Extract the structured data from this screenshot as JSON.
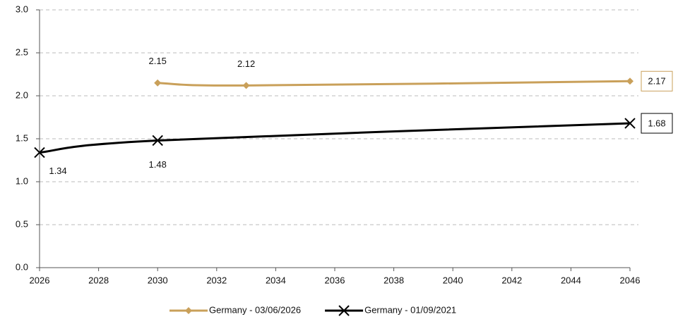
{
  "chart_data": {
    "type": "line",
    "xlim": [
      2026,
      2046
    ],
    "xticks": [
      2026,
      2028,
      2030,
      2032,
      2034,
      2036,
      2038,
      2040,
      2042,
      2044,
      2046
    ],
    "ylim": [
      0,
      3
    ],
    "yticks": [
      {
        "value": 0,
        "label": "0.0"
      },
      0.5,
      {
        "value": 1,
        "label": "1.0"
      },
      1.5,
      {
        "value": 2,
        "label": "2.0"
      },
      2.5,
      {
        "value": 3,
        "label": "3.0"
      }
    ],
    "grid": true,
    "legend": "bottom",
    "series": [
      {
        "name": "Germany - 03/06/2026",
        "color": "#c9a05a",
        "marker": "diamond",
        "x": [
          2030,
          2033,
          2046
        ],
        "values": [
          2.15,
          2.12,
          2.17
        ]
      },
      {
        "name": "Germany - 01/09/2021",
        "color": "#000000",
        "marker": "x",
        "x": [
          2026,
          2030,
          2046
        ],
        "values": [
          1.34,
          1.48,
          1.68
        ]
      }
    ]
  }
}
